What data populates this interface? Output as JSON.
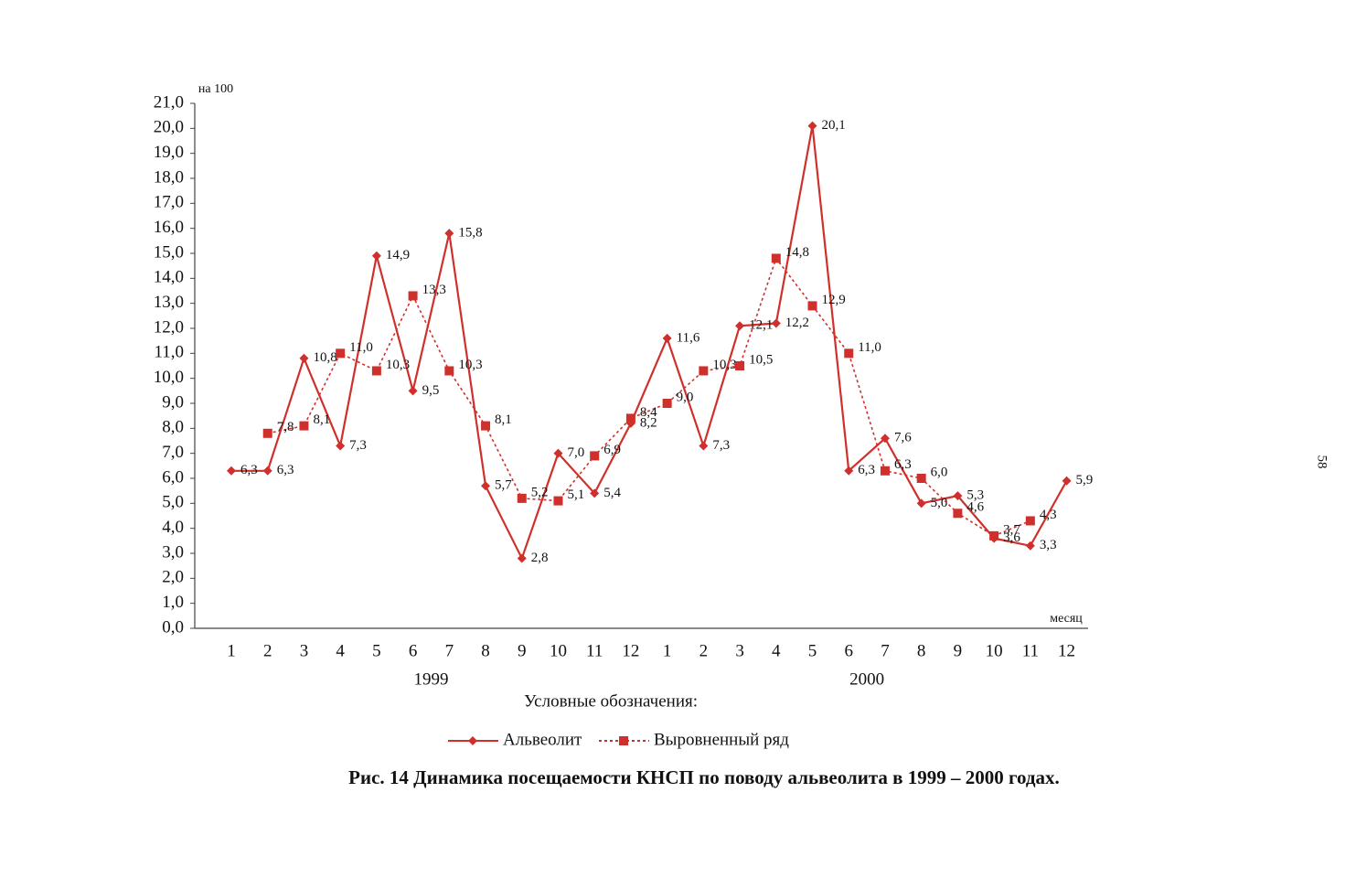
{
  "chart_data": {
    "type": "line",
    "y_label": "на 100",
    "x_label": "месяц",
    "legend_title": "Условные обозначения:",
    "caption": "Рис. 14  Динамика посещаемости КНСП по поводу альвеолита в 1999 – 2000 годах.",
    "page_number": "58",
    "categories": [
      "1",
      "2",
      "3",
      "4",
      "5",
      "6",
      "7",
      "8",
      "9",
      "10",
      "11",
      "12",
      "1",
      "2",
      "3",
      "4",
      "5",
      "6",
      "7",
      "8",
      "9",
      "10",
      "11",
      "12"
    ],
    "groups": [
      "1999",
      "2000"
    ],
    "ylim": [
      0,
      21
    ],
    "yticks": [
      {
        "value": 0,
        "label": "0,0"
      },
      {
        "value": 1,
        "label": "1,0"
      },
      {
        "value": 2,
        "label": "2,0"
      },
      {
        "value": 3,
        "label": "3,0"
      },
      {
        "value": 4,
        "label": "4,0"
      },
      {
        "value": 5,
        "label": "5,0"
      },
      {
        "value": 6,
        "label": "6,0"
      },
      {
        "value": 7,
        "label": "7,0"
      },
      {
        "value": 8,
        "label": "8,0"
      },
      {
        "value": 9,
        "label": "9,0"
      },
      {
        "value": 10,
        "label": "10,0"
      },
      {
        "value": 11,
        "label": "11,0"
      },
      {
        "value": 12,
        "label": "12,0"
      },
      {
        "value": 13,
        "label": "13,0"
      },
      {
        "value": 14,
        "label": "14,0"
      },
      {
        "value": 15,
        "label": "15,0"
      },
      {
        "value": 16,
        "label": "16,0"
      },
      {
        "value": 17,
        "label": "17,0"
      },
      {
        "value": 18,
        "label": "18,0"
      },
      {
        "value": 19,
        "label": "19,0"
      },
      {
        "value": 20,
        "label": "20,0"
      },
      {
        "value": 21,
        "label": "21,0"
      }
    ],
    "series": [
      {
        "name": "Альвеолит",
        "color": "#d0302c",
        "style": "solid",
        "marker": "diamond",
        "values": [
          6.3,
          6.3,
          10.8,
          7.3,
          14.9,
          9.5,
          15.8,
          5.7,
          2.8,
          7.0,
          5.4,
          8.2,
          11.6,
          7.3,
          12.1,
          12.2,
          20.1,
          6.3,
          7.6,
          5.0,
          5.3,
          3.6,
          3.3,
          5.9
        ],
        "value_labels": [
          "6,3",
          "6,3",
          "10,8",
          "7,3",
          "14,9",
          "9,5",
          "15,8",
          "5,7",
          "2,8",
          "7,0",
          "5,4",
          "8,2",
          "11,6",
          "7,3",
          "12,1",
          "12,2",
          "20,1",
          "6,3",
          "7,6",
          "5,0",
          "5,3",
          "3,6",
          "3,3",
          "5,9"
        ]
      },
      {
        "name": "Выровненный ряд",
        "color": "#d0302c",
        "style": "dotted",
        "marker": "square",
        "values": [
          null,
          7.8,
          8.1,
          11.0,
          10.3,
          13.3,
          10.3,
          8.1,
          5.2,
          5.1,
          6.9,
          8.4,
          9.0,
          10.3,
          10.5,
          14.8,
          12.9,
          11.0,
          6.3,
          6.0,
          4.6,
          3.7,
          4.3,
          null
        ],
        "value_labels": [
          null,
          "7,8",
          "8,1",
          "11,0",
          "10,3",
          "13,3",
          "10,3",
          "8,1",
          "5,2",
          "5,1",
          "6,9",
          "8,4",
          "9,0",
          "10,3",
          "10,5",
          "14,8",
          "12,9",
          "11,0",
          "6,3",
          "6,0",
          "4,6",
          "3,7",
          "4,3",
          null
        ]
      }
    ]
  }
}
